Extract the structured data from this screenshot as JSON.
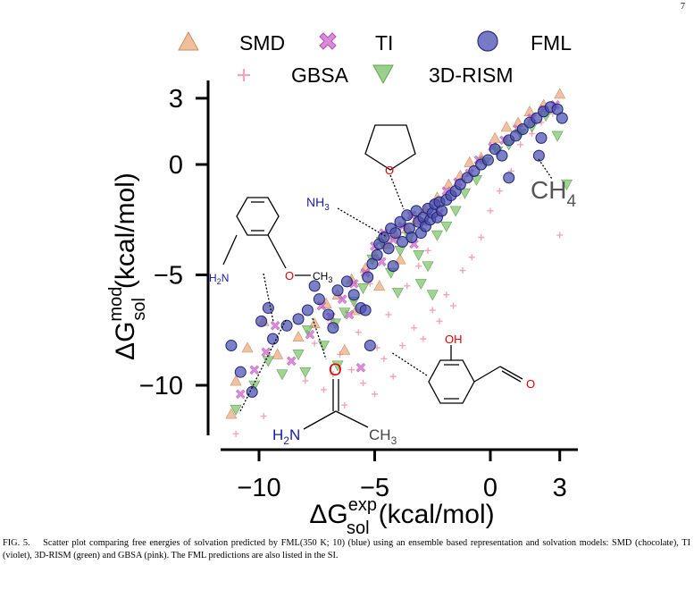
{
  "page_number": "7",
  "caption": {
    "prefix": "FIG. 5.",
    "text": "Scatter plot comparing free energies of solvation predicted by FML(350 K; 10) (blue) using an ensemble based representation and solvation models: SMD (chocolate), TI (violet), 3D-RISM (green) and GBSA (pink). The FML predictions are also listed in the SI."
  },
  "chart_data": {
    "type": "scatter",
    "xlabel": {
      "main": "ΔG",
      "sup": "exp",
      "sub": "sol",
      "unit": "(kcal/mol)"
    },
    "ylabel": {
      "main": "ΔG",
      "sup": "mod",
      "sub": "sol",
      "unit": "(kcal/mol)"
    },
    "xlim": [
      -12,
      3.5
    ],
    "ylim": [
      -12,
      3.5
    ],
    "xticks": [
      -10,
      -5,
      0,
      3
    ],
    "yticks": [
      3,
      0,
      -5,
      -10
    ],
    "xtick_labels": [
      "−10",
      "−5",
      "0",
      "3"
    ],
    "ytick_labels": [
      "3",
      "0",
      "−5",
      "−10"
    ],
    "grid": false,
    "legend_position": "top",
    "series": [
      {
        "name": "GBSA",
        "marker": "plus",
        "color": "#f4a3b8",
        "points": [
          [
            -11,
            -12.2
          ],
          [
            -9.8,
            -11.4
          ],
          [
            -8,
            -9.8
          ],
          [
            -7.2,
            -10.2
          ],
          [
            -6.8,
            -9.5
          ],
          [
            -6.3,
            -10.9
          ],
          [
            -6,
            -9.3
          ],
          [
            -5.5,
            -9.9
          ],
          [
            -5,
            -10.4
          ],
          [
            -4.6,
            -8.8
          ],
          [
            -4.2,
            -9.6
          ],
          [
            -3.8,
            -8.2
          ],
          [
            -3.3,
            -7.4
          ],
          [
            -2.9,
            -7.9
          ],
          [
            -2.5,
            -6.6
          ],
          [
            -2.2,
            -7.1
          ],
          [
            -1.9,
            -5.9
          ],
          [
            -1.6,
            -6.4
          ],
          [
            -1.2,
            -4.8
          ],
          [
            -0.8,
            -4.2
          ],
          [
            -0.4,
            -3.3
          ],
          [
            0,
            -2.1
          ],
          [
            0.4,
            -1.2
          ],
          [
            0.9,
            -0.3
          ],
          [
            1.3,
            0.9
          ],
          [
            1.8,
            1.4
          ],
          [
            2.2,
            1.9
          ],
          [
            2.7,
            2.3
          ],
          [
            3,
            -3.2
          ],
          [
            -7.6,
            -8.1
          ],
          [
            -6.9,
            -7.2
          ],
          [
            -5.9,
            -6.2
          ],
          [
            -5.2,
            -5.4
          ],
          [
            -4.4,
            -6.8
          ],
          [
            -3.6,
            -5.5
          ],
          [
            -3.1,
            -4.6
          ],
          [
            -2.7,
            -3.9
          ],
          [
            -6.5,
            -8.6
          ],
          [
            -5.7,
            -7.6
          ],
          [
            -4.9,
            -8.3
          ]
        ]
      },
      {
        "name": "SMD",
        "marker": "triangle-up",
        "color": "#e8a87c",
        "points": [
          [
            -11,
            -9.8
          ],
          [
            -10.5,
            -8.3
          ],
          [
            -9.8,
            -7.1
          ],
          [
            -9.2,
            -8.6
          ],
          [
            -8.3,
            -7.8
          ],
          [
            -7.6,
            -7.2
          ],
          [
            -7.1,
            -6.3
          ],
          [
            -6.6,
            -5.9
          ],
          [
            -6,
            -5.2
          ],
          [
            -5.4,
            -4.7
          ],
          [
            -5,
            -4.1
          ],
          [
            -4.5,
            -3.6
          ],
          [
            -4.1,
            -3.2
          ],
          [
            -3.6,
            -2.9
          ],
          [
            -3.2,
            -2.5
          ],
          [
            -2.8,
            -2.1
          ],
          [
            -2.3,
            -1.5
          ],
          [
            -1.8,
            -0.9
          ],
          [
            -1.3,
            -0.5
          ],
          [
            -0.9,
            0.1
          ],
          [
            -0.4,
            0.3
          ],
          [
            0.2,
            1.2
          ],
          [
            0.7,
            1.7
          ],
          [
            1.2,
            1.9
          ],
          [
            1.7,
            2.4
          ],
          [
            2.3,
            2.7
          ],
          [
            3,
            3.2
          ],
          [
            -11.2,
            -11.3
          ],
          [
            -6.3,
            -8.4
          ],
          [
            -5.8,
            -6.6
          ],
          [
            -4.8,
            -5.5
          ],
          [
            -3.9,
            -4.3
          ]
        ]
      },
      {
        "name": "TI",
        "marker": "x-bold",
        "color": "#cc66cc",
        "points": [
          [
            -10.8,
            -10.4
          ],
          [
            -10.2,
            -9.3
          ],
          [
            -9.7,
            -8.5
          ],
          [
            -9.3,
            -7.3
          ],
          [
            -8.6,
            -8.9
          ],
          [
            -7.8,
            -7.7
          ],
          [
            -7.3,
            -6.4
          ],
          [
            -6.9,
            -6.9
          ],
          [
            -6.4,
            -6.1
          ],
          [
            -5.9,
            -5.4
          ],
          [
            -5.4,
            -4.9
          ],
          [
            -5,
            -3.7
          ],
          [
            -4.6,
            -3.1
          ],
          [
            -4.2,
            -3.4
          ],
          [
            -3.8,
            -2.8
          ],
          [
            -3.4,
            -2.3
          ],
          [
            -2.9,
            -2.6
          ],
          [
            -2.4,
            -1.8
          ],
          [
            -1.9,
            -1.2
          ],
          [
            -1.4,
            -0.8
          ],
          [
            -0.9,
            -0.4
          ],
          [
            -0.5,
            0.2
          ],
          [
            0.1,
            0.8
          ],
          [
            0.6,
            1.1
          ],
          [
            1.2,
            1.6
          ],
          [
            1.8,
            2.1
          ],
          [
            2.3,
            2.5
          ],
          [
            2.8,
            2.7
          ],
          [
            -6.1,
            -6.8
          ],
          [
            -4.7,
            -4.4
          ],
          [
            -3.3,
            -3.6
          ],
          [
            -2.2,
            -2.2
          ],
          [
            -5.6,
            -9.2
          ]
        ]
      },
      {
        "name": "3D-RISM",
        "marker": "triangle-down",
        "color": "#7bbf6a",
        "points": [
          [
            -11,
            -11.1
          ],
          [
            -10.2,
            -10
          ],
          [
            -9.6,
            -8.9
          ],
          [
            -9,
            -9.5
          ],
          [
            -8.3,
            -8.6
          ],
          [
            -7.9,
            -7.5
          ],
          [
            -7.2,
            -8.2
          ],
          [
            -6.7,
            -7.2
          ],
          [
            -6.3,
            -6.7
          ],
          [
            -5.9,
            -6.2
          ],
          [
            -5.5,
            -5.6
          ],
          [
            -5.1,
            -4.3
          ],
          [
            -4.7,
            -3.5
          ],
          [
            -4.3,
            -4.9
          ],
          [
            -3.9,
            -3.9
          ],
          [
            -3.5,
            -3.3
          ],
          [
            -3.1,
            -4.1
          ],
          [
            -2.7,
            -4.6
          ],
          [
            -2.3,
            -3.2
          ],
          [
            -1.9,
            -2.8
          ],
          [
            -1.5,
            -2.1
          ],
          [
            -1.1,
            -1.3
          ],
          [
            -0.6,
            -0.7
          ],
          [
            -0.2,
            0.1
          ],
          [
            0.3,
            0.6
          ],
          [
            0.8,
            0.9
          ],
          [
            1.3,
            1.4
          ],
          [
            1.8,
            1.7
          ],
          [
            2.4,
            2.2
          ],
          [
            2.9,
            1.3
          ],
          [
            3.3,
            -0.9
          ],
          [
            -4,
            -5.8
          ],
          [
            -3,
            -5.4
          ],
          [
            -2.5,
            -5.9
          ],
          [
            -8,
            -9.4
          ],
          [
            -6.6,
            -9.1
          ]
        ]
      },
      {
        "name": "FML",
        "marker": "circle",
        "color": "#4a4fb0",
        "points": [
          [
            -11.2,
            -8.2
          ],
          [
            -10.8,
            -9.4
          ],
          [
            -10.3,
            -10.3
          ],
          [
            -9.9,
            -7.1
          ],
          [
            -9.6,
            -6.5
          ],
          [
            -9.4,
            -7.9
          ],
          [
            -8.8,
            -7.3
          ],
          [
            -8.3,
            -7
          ],
          [
            -7.9,
            -6.6
          ],
          [
            -7.4,
            -6.1
          ],
          [
            -7,
            -6.8
          ],
          [
            -6.6,
            -5.7
          ],
          [
            -6.2,
            -5.3
          ],
          [
            -5.9,
            -5.9
          ],
          [
            -5.6,
            -6.5
          ],
          [
            -5.3,
            -5.1
          ],
          [
            -5.1,
            -4.5
          ],
          [
            -4.9,
            -4.1
          ],
          [
            -4.8,
            -3.6
          ],
          [
            -4.6,
            -3.3
          ],
          [
            -4.4,
            -3.8
          ],
          [
            -4.3,
            -2.9
          ],
          [
            -4.2,
            -4.6
          ],
          [
            -4.1,
            -3.1
          ],
          [
            -3.9,
            -2.6
          ],
          [
            -3.8,
            -3.5
          ],
          [
            -3.6,
            -2.3
          ],
          [
            -3.5,
            -2.9
          ],
          [
            -3.4,
            -3.3
          ],
          [
            -3.2,
            -2.1
          ],
          [
            -3.1,
            -2.6
          ],
          [
            -3,
            -3.1
          ],
          [
            -2.9,
            -2.4
          ],
          [
            -2.8,
            -2.8
          ],
          [
            -2.7,
            -2
          ],
          [
            -2.6,
            -2.5
          ],
          [
            -2.5,
            -2.2
          ],
          [
            -2.4,
            -1.8
          ],
          [
            -2.3,
            -2.4
          ],
          [
            -2.2,
            -1.7
          ],
          [
            -2.1,
            -2.1
          ],
          [
            -1.9,
            -1.6
          ],
          [
            -1.7,
            -1.4
          ],
          [
            -1.5,
            -1.2
          ],
          [
            -1.3,
            -0.9
          ],
          [
            -1,
            -0.6
          ],
          [
            -0.7,
            -0.3
          ],
          [
            -0.4,
            0
          ],
          [
            -0.1,
            0.2
          ],
          [
            0.2,
            0.7
          ],
          [
            0.5,
            0.4
          ],
          [
            0.8,
            1.1
          ],
          [
            1.1,
            1.3
          ],
          [
            1.4,
            1.6
          ],
          [
            1.7,
            1.9
          ],
          [
            2,
            2.1
          ],
          [
            2.3,
            2.4
          ],
          [
            2.6,
            2.6
          ],
          [
            2.9,
            2.5
          ],
          [
            3.1,
            2.1
          ],
          [
            2.2,
            1.2
          ],
          [
            2.1,
            0.4
          ],
          [
            0.8,
            -0.6
          ],
          [
            -5.4,
            -6.6
          ],
          [
            -7.6,
            -5.5
          ],
          [
            -6.8,
            -7.4
          ],
          [
            -5.2,
            -8.2
          ]
        ]
      }
    ],
    "annotations": [
      {
        "text": "NH",
        "sub": "3"
      },
      {
        "text": "CH",
        "sub": "4"
      },
      {
        "text": "H",
        "sub": "2",
        "text2": "N"
      },
      {
        "text": "O"
      },
      {
        "text": "CH",
        "sub": "3"
      },
      {
        "text": "OH"
      }
    ]
  }
}
